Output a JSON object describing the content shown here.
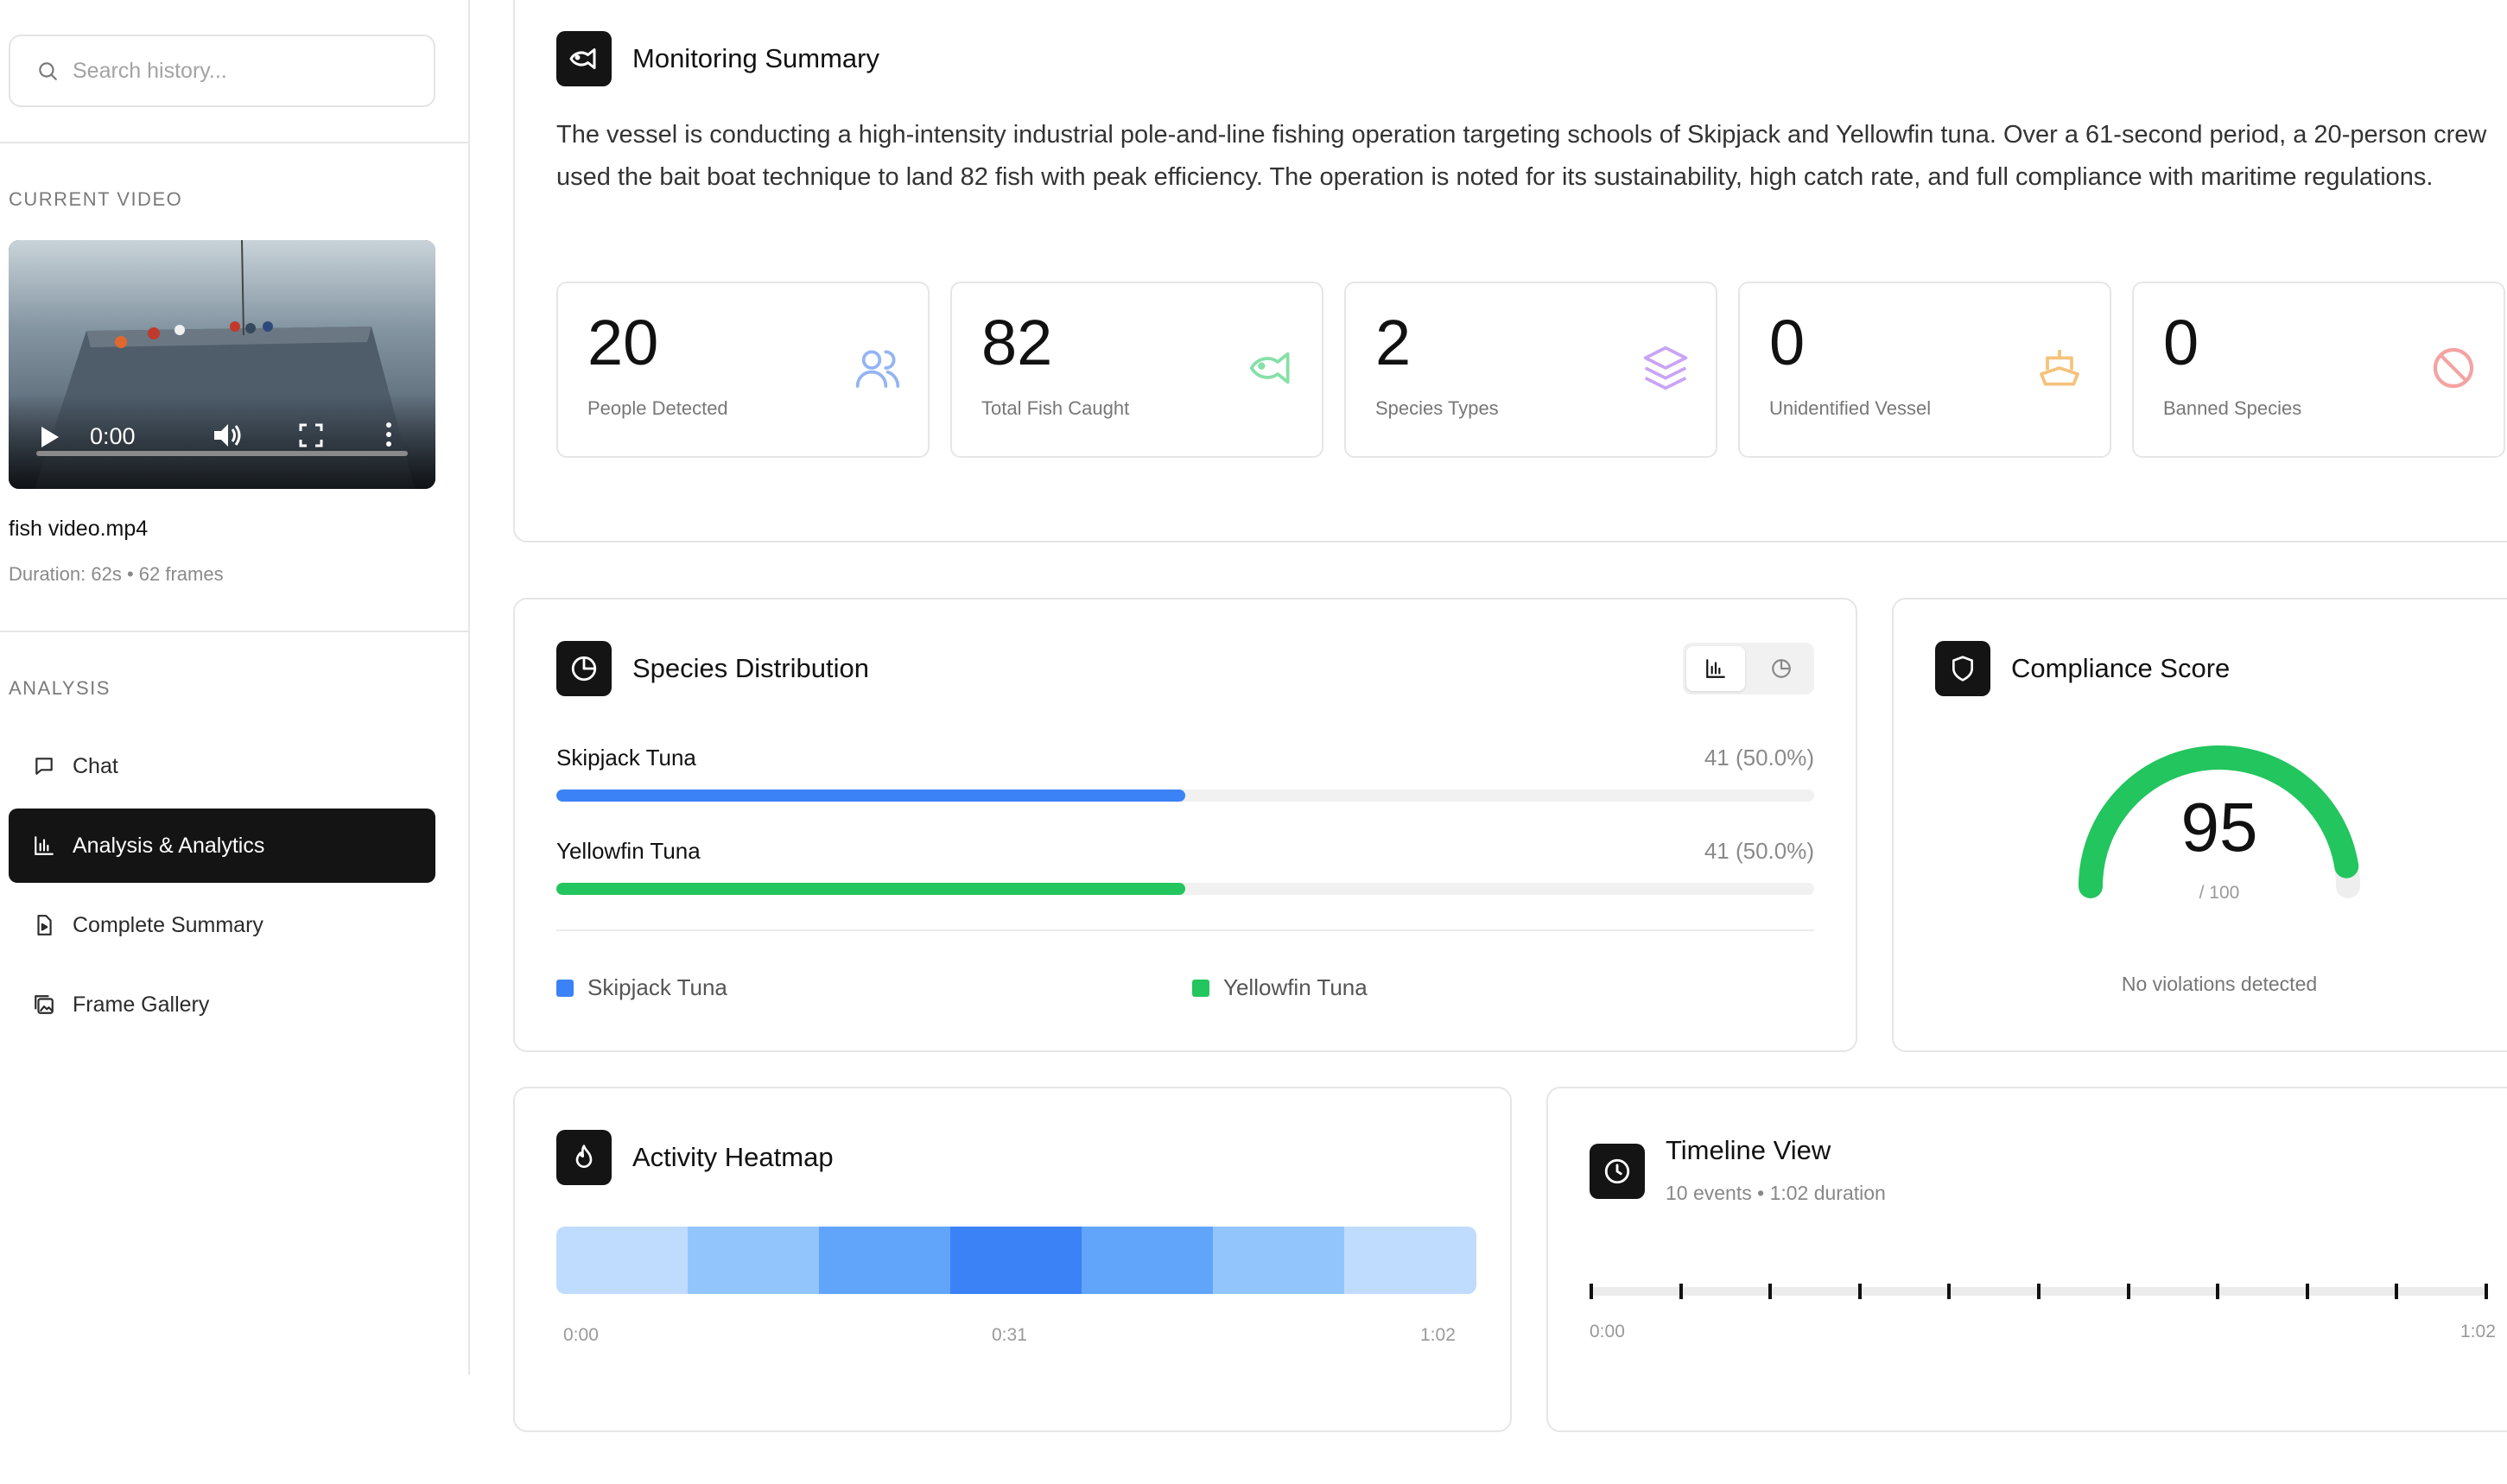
{
  "sidebar": {
    "search_placeholder": "Search history...",
    "current_video_label": "CURRENT VIDEO",
    "video": {
      "time": "0:00",
      "file_name": "fish video.mp4",
      "meta": "Duration: 62s • 62 frames"
    },
    "analysis_label": "ANALYSIS",
    "nav": [
      {
        "label": "Chat",
        "icon": "message-square-icon",
        "active": false
      },
      {
        "label": "Analysis & Analytics",
        "icon": "bar-chart-icon",
        "active": true
      },
      {
        "label": "Complete Summary",
        "icon": "file-video-icon",
        "active": false
      },
      {
        "label": "Frame Gallery",
        "icon": "image-gallery-icon",
        "active": false
      }
    ]
  },
  "summary": {
    "title": "Monitoring Summary",
    "icon": "fish-icon",
    "text": "The vessel is conducting a high-intensity industrial pole-and-line fishing operation targeting schools of Skipjack and Yellowfin tuna. Over a 61-second period, a 20-person crew used the bait boat technique to land 82 fish with peak efficiency. The operation is noted for its sustainability, high catch rate, and full compliance with maritime regulations.",
    "stats": [
      {
        "value": "20",
        "label": "People Detected",
        "icon": "users-icon",
        "color": "#93b4f4"
      },
      {
        "value": "82",
        "label": "Total Fish Caught",
        "icon": "fish-icon",
        "color": "#86e0a7"
      },
      {
        "value": "2",
        "label": "Species Types",
        "icon": "layers-icon",
        "color": "#c9a4f4"
      },
      {
        "value": "0",
        "label": "Unidentified Vessel",
        "icon": "ship-icon",
        "color": "#f5c27a"
      },
      {
        "value": "0",
        "label": "Banned Species",
        "icon": "ban-icon",
        "color": "#f4a3a3"
      }
    ]
  },
  "species": {
    "title": "Species Distribution",
    "icon": "pie-chart-icon",
    "toggle": [
      {
        "icon": "bar-chart-icon",
        "active": true
      },
      {
        "icon": "pie-chart-icon",
        "active": false
      }
    ],
    "items": [
      {
        "name": "Skipjack Tuna",
        "value_text": "41 (50.0%)",
        "fraction": 0.5,
        "color": "#3b82f6"
      },
      {
        "name": "Yellowfin Tuna",
        "value_text": "41 (50.0%)",
        "fraction": 0.5,
        "color": "#22c55e"
      }
    ]
  },
  "compliance": {
    "title": "Compliance Score",
    "icon": "shield-icon",
    "score": 95,
    "score_text": "95",
    "max_text": "/ 100",
    "max": 100,
    "note": "No violations detected",
    "color": "#22c55e"
  },
  "heatmap": {
    "title": "Activity Heatmap",
    "icon": "flame-icon",
    "cells": [
      "#bfdbfe",
      "#93c5fd",
      "#60a5fa",
      "#3b82f6",
      "#60a5fa",
      "#93c5fd",
      "#bfdbfe"
    ],
    "ticks": [
      "0:00",
      "0:31",
      "1:02"
    ]
  },
  "timeline": {
    "title": "Timeline View",
    "icon": "clock-icon",
    "subtitle": "10 events • 1:02 duration",
    "event_count": 10,
    "ticks": [
      "0:00",
      "1:02"
    ]
  }
}
